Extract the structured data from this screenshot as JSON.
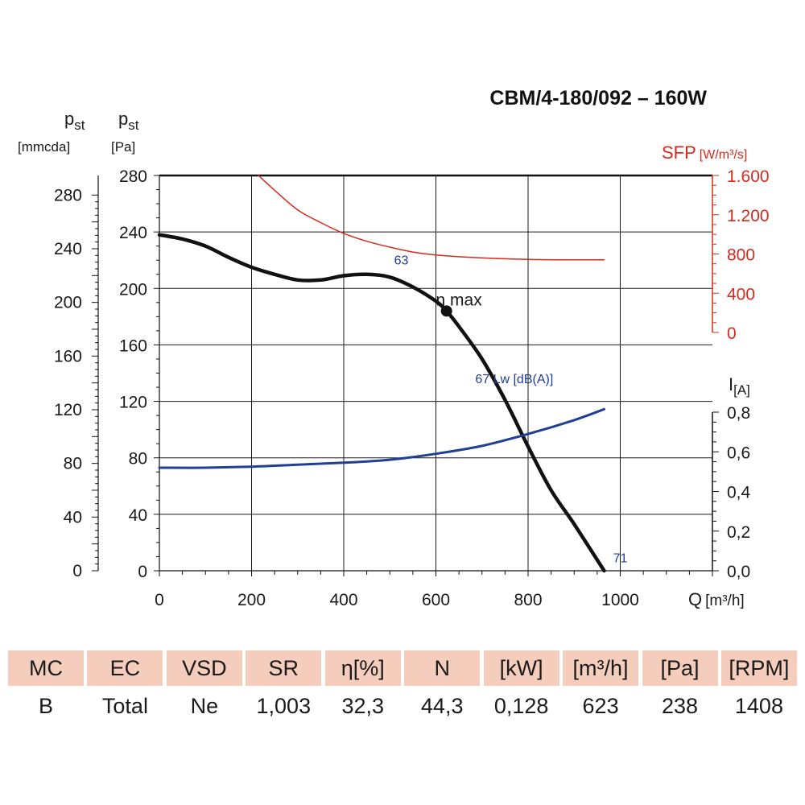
{
  "chart_data": {
    "type": "line",
    "title": "CBM/4-180/092 – 160W",
    "xlabel": "Q [m³/h]",
    "x_axis": {
      "label_main": "Q",
      "label_unit": "[m³/h]",
      "range": [
        0,
        1200
      ],
      "ticks": [
        "0",
        "200",
        "400",
        "600",
        "800",
        "1000"
      ]
    },
    "y_axis_outer": {
      "label_main": "p",
      "label_sub": "st",
      "label_unit": "[mmcda]",
      "ticks": [
        "0",
        "40",
        "80",
        "120",
        "160",
        "200",
        "240",
        "280"
      ]
    },
    "y_axis_inner": {
      "label_main": "p",
      "label_sub": "st",
      "label_unit": "[Pa]",
      "range": [
        0,
        280
      ],
      "ticks": [
        "0",
        "40",
        "80",
        "120",
        "160",
        "200",
        "240",
        "280"
      ]
    },
    "y_axis_sfp": {
      "label_main": "SFP",
      "label_unit": "[W/m³/s]",
      "range": [
        0,
        1600
      ],
      "ticks": [
        "0",
        "400",
        "800",
        "1.200",
        "1.600"
      ],
      "color": "#d52b1e"
    },
    "y_axis_current": {
      "label_main": "I",
      "label_sub": "[A]",
      "range": [
        0,
        0.8
      ],
      "ticks": [
        "0,0",
        "0,2",
        "0,4",
        "0,6",
        "0,8"
      ]
    },
    "grid": true,
    "series": [
      {
        "axis": "pressure",
        "color": "#111111",
        "points": [
          [
            0,
            238
          ],
          [
            50,
            235
          ],
          [
            100,
            230
          ],
          [
            150,
            222
          ],
          [
            200,
            215
          ],
          [
            250,
            210
          ],
          [
            300,
            206
          ],
          [
            350,
            206
          ],
          [
            400,
            209
          ],
          [
            450,
            210
          ],
          [
            500,
            208
          ],
          [
            550,
            201
          ],
          [
            600,
            191
          ],
          [
            623,
            184
          ],
          [
            650,
            173
          ],
          [
            700,
            150
          ],
          [
            750,
            121
          ],
          [
            800,
            88
          ],
          [
            850,
            57
          ],
          [
            900,
            33
          ],
          [
            965,
            0
          ]
        ]
      },
      {
        "axis": "sfp",
        "color": "#d52b1e",
        "points": [
          [
            215,
            1600
          ],
          [
            250,
            1450
          ],
          [
            300,
            1250
          ],
          [
            350,
            1120
          ],
          [
            400,
            1010
          ],
          [
            450,
            930
          ],
          [
            500,
            870
          ],
          [
            550,
            820
          ],
          [
            600,
            790
          ],
          [
            700,
            760
          ],
          [
            800,
            745
          ],
          [
            900,
            740
          ],
          [
            965,
            740
          ]
        ]
      },
      {
        "axis": "current",
        "color": "#1f3f94",
        "points": [
          [
            0,
            0.52
          ],
          [
            100,
            0.52
          ],
          [
            200,
            0.525
          ],
          [
            300,
            0.535
          ],
          [
            400,
            0.545
          ],
          [
            500,
            0.56
          ],
          [
            600,
            0.59
          ],
          [
            700,
            0.63
          ],
          [
            800,
            0.69
          ],
          [
            900,
            0.76
          ],
          [
            965,
            0.815
          ]
        ]
      }
    ],
    "annotations": [
      {
        "text": "63",
        "x": 525,
        "y": 217
      },
      {
        "text": "η max",
        "x": 650,
        "y": 188
      },
      {
        "text": "67 Lw [dB(A)]",
        "x": 770,
        "y": 133
      },
      {
        "text": "71",
        "x": 1000,
        "y": 6
      }
    ],
    "eta_max_point": {
      "x": 623,
      "y": 184
    }
  },
  "table": {
    "headers": [
      "MC",
      "EC",
      "VSD",
      "SR",
      "η[%]",
      "N",
      "[kW]",
      "[m³/h]",
      "[Pa]",
      "[RPM]"
    ],
    "values": [
      "B",
      "Total",
      "Ne",
      "1,003",
      "32,3",
      "44,3",
      "0,128",
      "623",
      "238",
      "1408"
    ]
  }
}
